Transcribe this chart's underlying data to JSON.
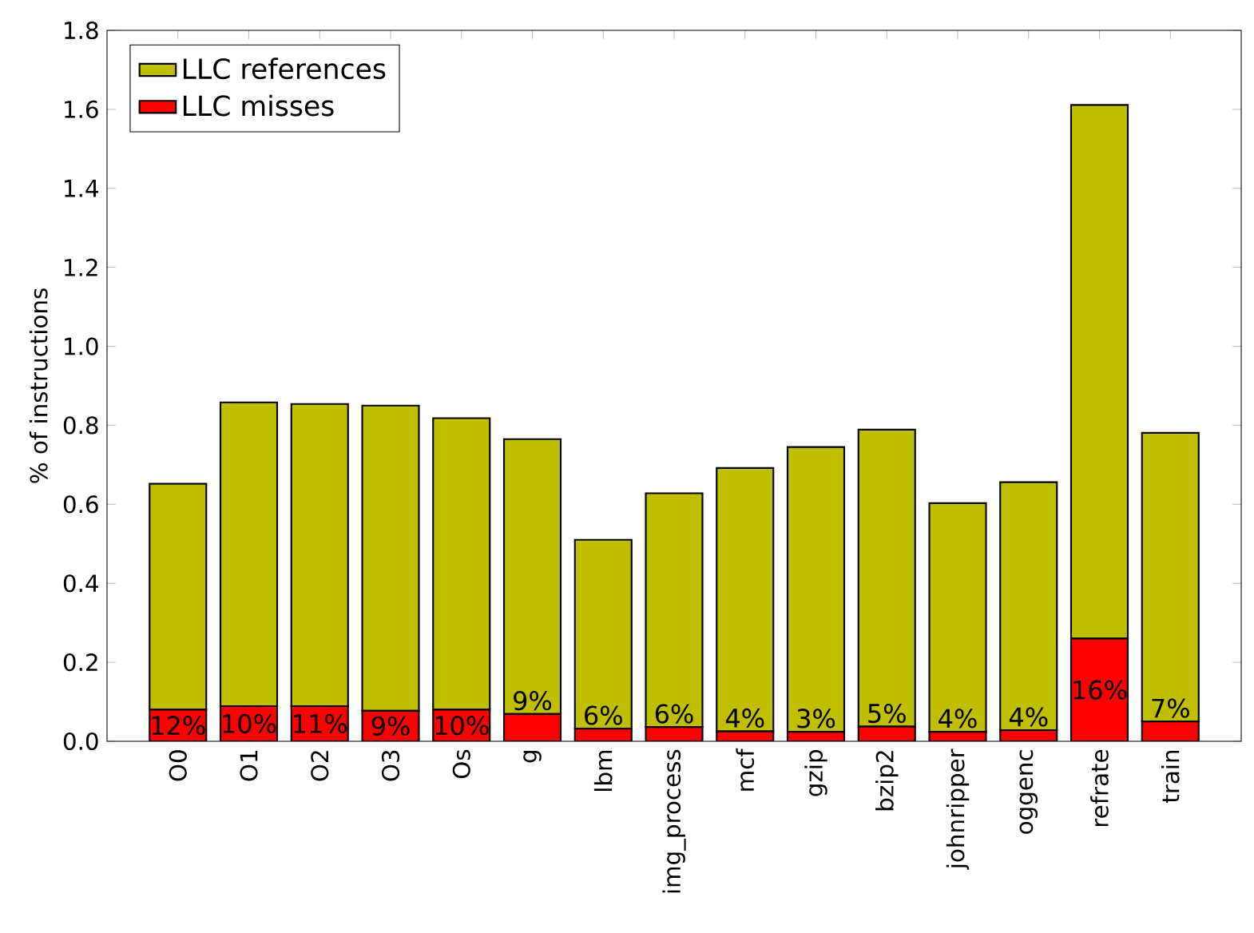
{
  "chart_data": {
    "type": "bar",
    "ylabel": "% of instructions",
    "categories": [
      "O0",
      "O1",
      "O2",
      "O3",
      "Os",
      "g",
      "lbm",
      "img_process",
      "mcf",
      "gzip",
      "bzip2",
      "johnripper",
      "oggenc",
      "refrate",
      "train"
    ],
    "series": [
      {
        "name": "LLC misses",
        "color": "#ff0000",
        "values": [
          0.08,
          0.089,
          0.089,
          0.077,
          0.08,
          0.069,
          0.032,
          0.036,
          0.025,
          0.024,
          0.037,
          0.024,
          0.028,
          0.26,
          0.05
        ]
      },
      {
        "name": "LLC references",
        "color": "#bfbf00",
        "values": [
          0.572,
          0.769,
          0.765,
          0.773,
          0.738,
          0.696,
          0.478,
          0.592,
          0.667,
          0.721,
          0.752,
          0.579,
          0.628,
          1.351,
          0.731
        ]
      }
    ],
    "stacked": true,
    "annotations": [
      {
        "text": "12%",
        "x": "O0",
        "y": 0.08
      },
      {
        "text": "10%",
        "x": "O1",
        "y": 0.089
      },
      {
        "text": "11%",
        "x": "O2",
        "y": 0.089
      },
      {
        "text": "9%",
        "x": "O3",
        "y": 0.077
      },
      {
        "text": "10%",
        "x": "Os",
        "y": 0.08
      },
      {
        "text": "9%",
        "x": "g",
        "y": 0.069
      },
      {
        "text": "6%",
        "x": "lbm",
        "y": 0.032
      },
      {
        "text": "6%",
        "x": "img_process",
        "y": 0.036
      },
      {
        "text": "4%",
        "x": "mcf",
        "y": 0.025
      },
      {
        "text": "3%",
        "x": "gzip",
        "y": 0.024
      },
      {
        "text": "5%",
        "x": "bzip2",
        "y": 0.037
      },
      {
        "text": "4%",
        "x": "johnripper",
        "y": 0.024
      },
      {
        "text": "4%",
        "x": "oggenc",
        "y": 0.028
      },
      {
        "text": "16%",
        "x": "refrate",
        "y": 0.26
      },
      {
        "text": "7%",
        "x": "train",
        "y": 0.05
      }
    ],
    "ylim": [
      0,
      1.8
    ],
    "yticks": [
      {
        "value": 0,
        "label": "0.0"
      },
      0.2,
      0.4,
      0.6,
      0.8,
      {
        "value": 1,
        "label": "1.0"
      },
      1.2,
      1.4,
      1.6,
      1.8
    ],
    "legend": "top left",
    "grid": false
  }
}
